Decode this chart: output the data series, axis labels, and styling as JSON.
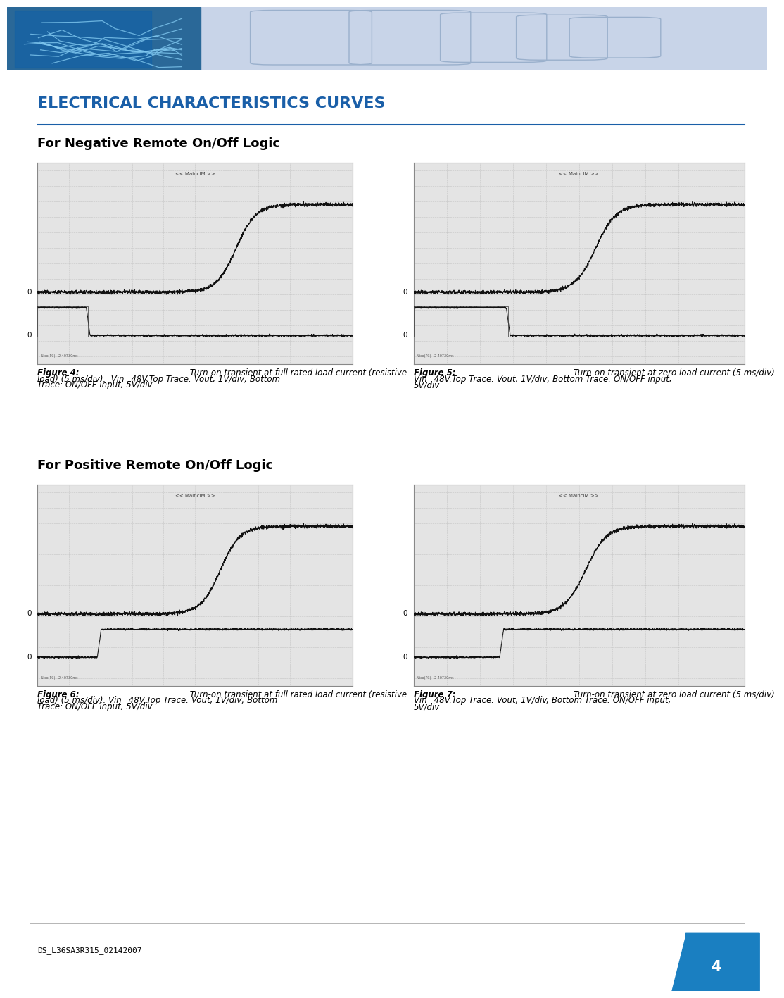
{
  "page_bg": "#ffffff",
  "header_bg": "#c8d4e8",
  "header_img_color": "#1a7fc1",
  "title_text": "ELECTRICAL CHARACTERISTICS CURVES",
  "title_color": "#1a5fa8",
  "title_fontsize": 16,
  "subtitle1": "For Negative Remote On/Off Logic",
  "subtitle2": "For Positive Remote On/Off Logic",
  "subtitle_fontsize": 13,
  "fig4_bold": "Figure 4:",
  "fig4_rest": " Turn-on transient at full rated load current (resistive\nload) (5 ms/div).  Vin=48V.Top Trace: Vout, 1V/div; Bottom\nTrace: ON/OFF input, 5V/div",
  "fig5_bold": "Figure 5:",
  "fig5_rest": " Turn-on transient at zero load current (5 ms/div).\nVin=48V.Top Trace: Vout, 1V/div; Bottom Trace: ON/OFF input,\n5V/div",
  "fig6_bold": "Figure 6:",
  "fig6_rest": " Turn-on transient at full rated load current (resistive\nload) (5 ms/div). Vin=48V.Top Trace: Vout, 1V/div; Bottom\nTrace: ON/OFF input, 5V/div",
  "fig7_bold": "Figure 7:",
  "fig7_rest": " Turn-on transient at zero load current (5 ms/div).\nVin=48V.Top Trace: Vout, 1V/div, Bottom Trace: ON/OFF input,\n5V/div",
  "caption_fontsize": 8.5,
  "footer_text": "DS_L36SA3R315_02142007",
  "footer_page": "4",
  "scope_bg": "#e4e4e4",
  "scope_grid": "#aaaaaa",
  "scope_trace": "#111111",
  "scope_border": "#888888",
  "scope_label": "<< MaincIM >>"
}
